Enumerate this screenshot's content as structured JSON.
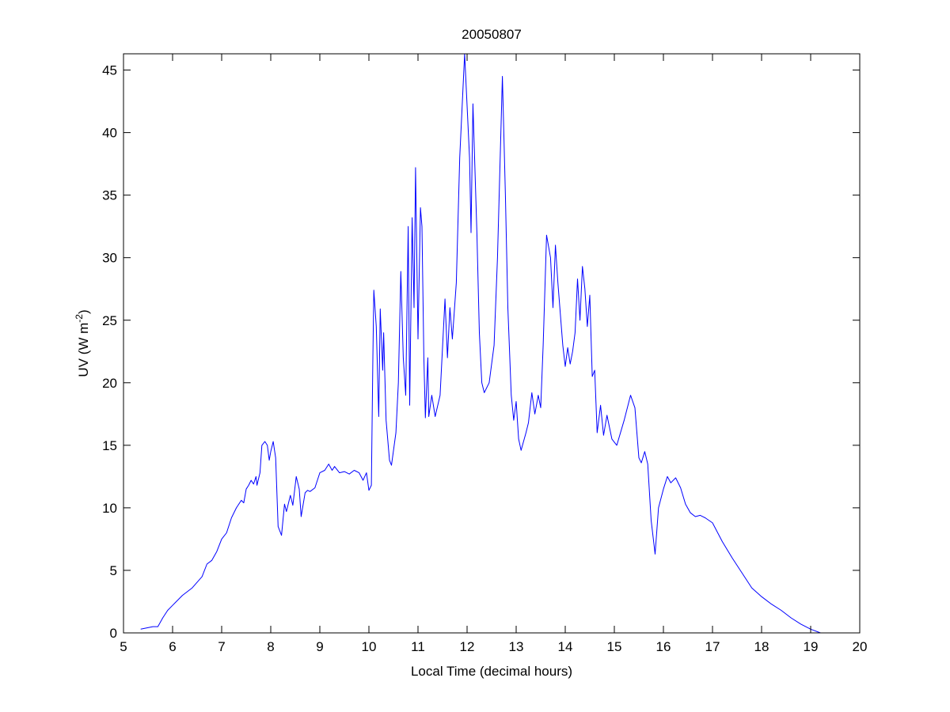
{
  "chart_data": {
    "type": "line",
    "title": "20050807",
    "xlabel": "Local Time (decimal hours)",
    "ylabel_parts": {
      "base": "UV (W m",
      "sup": "-2",
      "end": ")"
    },
    "xlim": [
      5,
      20
    ],
    "ylim": [
      0,
      46.3
    ],
    "xticks": [
      5,
      6,
      7,
      8,
      9,
      10,
      11,
      12,
      13,
      14,
      15,
      16,
      17,
      18,
      19,
      20
    ],
    "yticks": [
      0,
      5,
      10,
      15,
      20,
      25,
      30,
      35,
      40,
      45
    ],
    "grid": false,
    "line_color": "#0000ff",
    "series": [
      {
        "name": "UV",
        "points": [
          [
            5.35,
            0.3
          ],
          [
            5.6,
            0.5
          ],
          [
            5.7,
            0.5
          ],
          [
            5.8,
            1.2
          ],
          [
            5.9,
            1.8
          ],
          [
            6.0,
            2.2
          ],
          [
            6.2,
            3.0
          ],
          [
            6.4,
            3.6
          ],
          [
            6.6,
            4.5
          ],
          [
            6.7,
            5.5
          ],
          [
            6.8,
            5.8
          ],
          [
            6.9,
            6.5
          ],
          [
            7.0,
            7.5
          ],
          [
            7.1,
            8.0
          ],
          [
            7.2,
            9.2
          ],
          [
            7.3,
            10.0
          ],
          [
            7.4,
            10.6
          ],
          [
            7.45,
            10.4
          ],
          [
            7.5,
            11.5
          ],
          [
            7.55,
            11.8
          ],
          [
            7.6,
            12.2
          ],
          [
            7.65,
            11.9
          ],
          [
            7.7,
            12.5
          ],
          [
            7.72,
            11.8
          ],
          [
            7.78,
            12.8
          ],
          [
            7.82,
            15.0
          ],
          [
            7.88,
            15.3
          ],
          [
            7.93,
            15.0
          ],
          [
            7.97,
            13.8
          ],
          [
            8.0,
            14.5
          ],
          [
            8.05,
            15.3
          ],
          [
            8.1,
            14.0
          ],
          [
            8.15,
            8.5
          ],
          [
            8.22,
            7.8
          ],
          [
            8.28,
            10.3
          ],
          [
            8.32,
            9.7
          ],
          [
            8.4,
            11.0
          ],
          [
            8.45,
            10.2
          ],
          [
            8.52,
            12.5
          ],
          [
            8.58,
            11.5
          ],
          [
            8.62,
            9.3
          ],
          [
            8.7,
            11.2
          ],
          [
            8.75,
            11.4
          ],
          [
            8.8,
            11.3
          ],
          [
            8.9,
            11.6
          ],
          [
            9.0,
            12.8
          ],
          [
            9.1,
            13.0
          ],
          [
            9.18,
            13.5
          ],
          [
            9.25,
            13.0
          ],
          [
            9.3,
            13.3
          ],
          [
            9.4,
            12.8
          ],
          [
            9.5,
            12.9
          ],
          [
            9.6,
            12.7
          ],
          [
            9.7,
            13.0
          ],
          [
            9.8,
            12.8
          ],
          [
            9.88,
            12.2
          ],
          [
            9.95,
            12.8
          ],
          [
            10.0,
            11.4
          ],
          [
            10.05,
            11.8
          ],
          [
            10.08,
            22.0
          ],
          [
            10.1,
            27.4
          ],
          [
            10.15,
            24.5
          ],
          [
            10.2,
            17.3
          ],
          [
            10.23,
            25.9
          ],
          [
            10.28,
            21.0
          ],
          [
            10.3,
            24.0
          ],
          [
            10.35,
            17.0
          ],
          [
            10.42,
            13.8
          ],
          [
            10.46,
            13.4
          ],
          [
            10.55,
            16.0
          ],
          [
            10.6,
            20.0
          ],
          [
            10.65,
            28.9
          ],
          [
            10.7,
            22.0
          ],
          [
            10.75,
            19.0
          ],
          [
            10.8,
            32.5
          ],
          [
            10.83,
            18.2
          ],
          [
            10.88,
            33.2
          ],
          [
            10.92,
            26.0
          ],
          [
            10.95,
            37.2
          ],
          [
            11.0,
            23.5
          ],
          [
            11.05,
            34.0
          ],
          [
            11.08,
            32.5
          ],
          [
            11.12,
            22.0
          ],
          [
            11.15,
            17.2
          ],
          [
            11.2,
            22.0
          ],
          [
            11.22,
            17.3
          ],
          [
            11.28,
            19.0
          ],
          [
            11.35,
            17.3
          ],
          [
            11.45,
            19.0
          ],
          [
            11.55,
            26.7
          ],
          [
            11.6,
            22.0
          ],
          [
            11.65,
            26.0
          ],
          [
            11.7,
            23.5
          ],
          [
            11.78,
            28.0
          ],
          [
            11.85,
            38.0
          ],
          [
            11.95,
            46.3
          ],
          [
            12.05,
            38.0
          ],
          [
            12.08,
            32.0
          ],
          [
            12.12,
            42.3
          ],
          [
            12.2,
            32.0
          ],
          [
            12.25,
            24.0
          ],
          [
            12.3,
            20.0
          ],
          [
            12.35,
            19.2
          ],
          [
            12.45,
            20.0
          ],
          [
            12.55,
            23.0
          ],
          [
            12.62,
            30.0
          ],
          [
            12.72,
            44.5
          ],
          [
            12.78,
            35.0
          ],
          [
            12.83,
            26.0
          ],
          [
            12.9,
            19.0
          ],
          [
            12.95,
            17.0
          ],
          [
            13.0,
            18.5
          ],
          [
            13.05,
            15.5
          ],
          [
            13.1,
            14.6
          ],
          [
            13.2,
            16.0
          ],
          [
            13.25,
            16.8
          ],
          [
            13.32,
            19.2
          ],
          [
            13.38,
            17.5
          ],
          [
            13.45,
            19.0
          ],
          [
            13.5,
            18.0
          ],
          [
            13.55,
            23.0
          ],
          [
            13.62,
            31.8
          ],
          [
            13.7,
            30.0
          ],
          [
            13.75,
            26.0
          ],
          [
            13.8,
            31.0
          ],
          [
            13.85,
            28.0
          ],
          [
            13.95,
            23.0
          ],
          [
            14.0,
            21.3
          ],
          [
            14.05,
            22.8
          ],
          [
            14.1,
            21.5
          ],
          [
            14.15,
            22.5
          ],
          [
            14.2,
            24.0
          ],
          [
            14.25,
            28.3
          ],
          [
            14.3,
            25.0
          ],
          [
            14.35,
            29.3
          ],
          [
            14.4,
            27.5
          ],
          [
            14.45,
            24.5
          ],
          [
            14.5,
            27.0
          ],
          [
            14.55,
            20.5
          ],
          [
            14.6,
            21.0
          ],
          [
            14.65,
            16.0
          ],
          [
            14.72,
            18.2
          ],
          [
            14.78,
            15.8
          ],
          [
            14.85,
            17.4
          ],
          [
            14.95,
            15.5
          ],
          [
            15.05,
            15.0
          ],
          [
            15.2,
            17.0
          ],
          [
            15.33,
            19.0
          ],
          [
            15.42,
            18.0
          ],
          [
            15.5,
            14.0
          ],
          [
            15.55,
            13.6
          ],
          [
            15.62,
            14.5
          ],
          [
            15.68,
            13.5
          ],
          [
            15.75,
            9.0
          ],
          [
            15.83,
            6.3
          ],
          [
            15.9,
            10.0
          ],
          [
            16.0,
            11.5
          ],
          [
            16.08,
            12.5
          ],
          [
            16.15,
            12.0
          ],
          [
            16.25,
            12.4
          ],
          [
            16.35,
            11.6
          ],
          [
            16.45,
            10.3
          ],
          [
            16.55,
            9.6
          ],
          [
            16.65,
            9.3
          ],
          [
            16.75,
            9.4
          ],
          [
            16.85,
            9.2
          ],
          [
            17.0,
            8.8
          ],
          [
            17.2,
            7.3
          ],
          [
            17.4,
            6.0
          ],
          [
            17.6,
            4.8
          ],
          [
            17.8,
            3.6
          ],
          [
            18.0,
            2.9
          ],
          [
            18.2,
            2.3
          ],
          [
            18.4,
            1.8
          ],
          [
            18.6,
            1.2
          ],
          [
            18.8,
            0.7
          ],
          [
            19.0,
            0.3
          ],
          [
            19.2,
            0.0
          ]
        ]
      }
    ]
  }
}
